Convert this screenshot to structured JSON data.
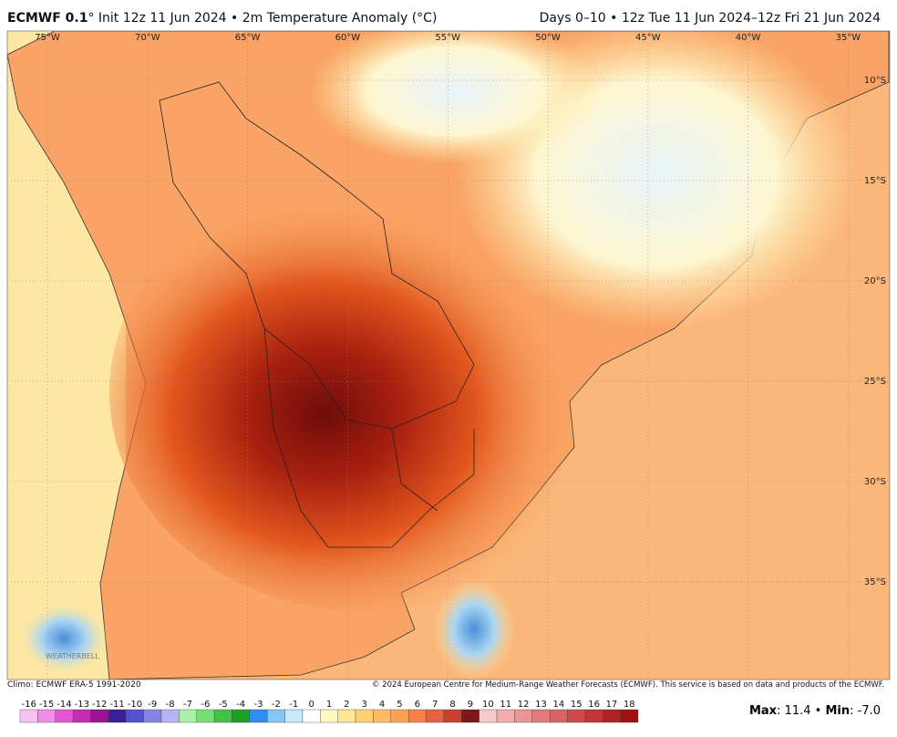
{
  "header": {
    "title_bold": "ECMWF 0.1",
    "title_rest": "° Init 12z 11 Jun 2024 • 2m Temperature Anomaly (°C)",
    "right": "Days 0–10 • 12z Tue 11 Jun 2024–12z Fri 21 Jun 2024"
  },
  "map": {
    "lon_labels": [
      "75°W",
      "70°W",
      "65°W",
      "60°W",
      "55°W",
      "50°W",
      "45°W",
      "40°W",
      "35°W"
    ],
    "lat_labels": [
      "10°S",
      "15°S",
      "20°S",
      "25°S",
      "30°S",
      "35°S"
    ],
    "watermark": "WEATHERBELL"
  },
  "footer": {
    "climo": "Climo: ECMWF ERA-5 1991-2020",
    "copyright": "© 2024 European Centre for Medium-Range Weather Forecasts (ECMWF). This service is based on data and products of the ECMWF.",
    "max_label": "Max",
    "max_value": "11.4",
    "min_label": "Min",
    "min_value": "-7.0"
  },
  "colorbar": {
    "ticks": [
      -16,
      -15,
      -14,
      -13,
      -12,
      -11,
      -10,
      -9,
      -8,
      -7,
      -6,
      -5,
      -4,
      -3,
      -2,
      -1,
      0,
      1,
      2,
      3,
      4,
      5,
      6,
      7,
      8,
      9,
      10,
      11,
      12,
      13,
      14,
      15,
      16,
      17,
      18
    ],
    "colors": [
      "#f9c0f2",
      "#f38de9",
      "#e455d6",
      "#c82cb6",
      "#9c1590",
      "#3a1f9c",
      "#5552d2",
      "#8583e3",
      "#b6b4f2",
      "#aaf0a8",
      "#76df74",
      "#44c244",
      "#1f9f26",
      "#2f8ef0",
      "#82c8f8",
      "#c6eafd",
      "#ffffff",
      "#fff8c2",
      "#ffe795",
      "#ffd173",
      "#ffba62",
      "#ffa052",
      "#f6824a",
      "#e56242",
      "#c83f30",
      "#7d1717",
      "#f8caca",
      "#f2adad",
      "#ea9494",
      "#e27b7b",
      "#da6363",
      "#d14a4a",
      "#c43434",
      "#b22222",
      "#a01212"
    ]
  }
}
